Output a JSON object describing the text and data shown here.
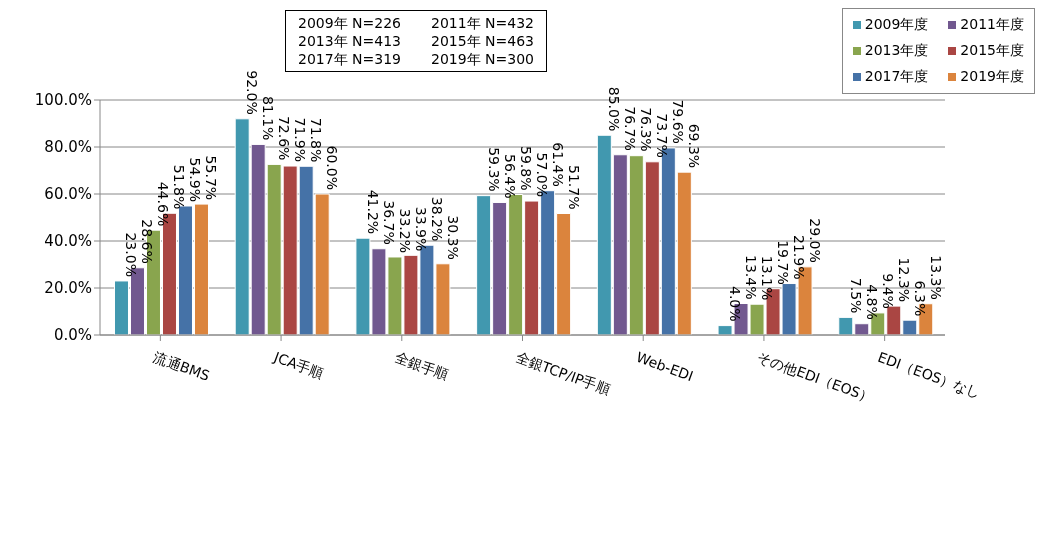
{
  "chart_data": {
    "type": "bar",
    "categories": [
      "流通BMS",
      "JCA手順",
      "全銀手順",
      "全銀TCP/IP手順",
      "Web-EDI",
      "その他EDI（EOS）",
      "EDI（EOS）なし"
    ],
    "series": [
      {
        "name": "2009年度",
        "color": "#4198af",
        "values": [
          23.0,
          92.0,
          41.2,
          59.3,
          85.0,
          4.0,
          7.5
        ],
        "value_labels": [
          "23.0%",
          "92.0%",
          "41.2%",
          "59.3%",
          "85.0%",
          "4.0%",
          "7.5%"
        ]
      },
      {
        "name": "2011年度",
        "color": "#71588f",
        "values": [
          28.6,
          81.1,
          36.7,
          56.4,
          76.7,
          13.4,
          4.8
        ],
        "value_labels": [
          "28.6%",
          "81.1%",
          "36.7%",
          "56.4%",
          "76.7%",
          "13.4%",
          "4.8%"
        ]
      },
      {
        "name": "2013年度",
        "color": "#89a54e",
        "values": [
          44.6,
          72.6,
          33.2,
          59.8,
          76.3,
          13.1,
          9.4
        ],
        "value_labels": [
          "44.6%",
          "72.6%",
          "33.2%",
          "59.8%",
          "76.3%",
          "13.1%",
          "9.4%"
        ]
      },
      {
        "name": "2015年度",
        "color": "#aa4643",
        "values": [
          51.8,
          71.9,
          33.9,
          57.0,
          73.7,
          19.7,
          12.3
        ],
        "value_labels": [
          "51.8%",
          "71.9%",
          "33.9%",
          "57.0%",
          "73.7%",
          "19.7%",
          "12.3%"
        ]
      },
      {
        "name": "2017年度",
        "color": "#4572a7",
        "values": [
          54.9,
          71.8,
          38.2,
          61.4,
          79.6,
          21.9,
          6.3
        ],
        "value_labels": [
          "54.9%",
          "71.8%",
          "38.2%",
          "61.4%",
          "79.6%",
          "21.9%",
          "6.3%"
        ]
      },
      {
        "name": "2019年度",
        "color": "#db843d",
        "values": [
          55.7,
          60.0,
          30.3,
          51.7,
          69.3,
          29.0,
          13.3
        ],
        "value_labels": [
          "55.7%",
          "60.0%",
          "30.3%",
          "51.7%",
          "69.3%",
          "29.0%",
          "13.3%"
        ]
      }
    ],
    "ylim": [
      0,
      100
    ],
    "yticks": [
      {
        "value": 0,
        "label": "0.0%"
      },
      {
        "value": 20,
        "label": "20.0%"
      },
      {
        "value": 40,
        "label": "40.0%"
      },
      {
        "value": 60,
        "label": "60.0%"
      },
      {
        "value": 80,
        "label": "80.0%"
      },
      {
        "value": 100,
        "label": "100.0%"
      }
    ],
    "grid": "y",
    "legend": "top right",
    "annotations": [
      "2009年 N=226",
      "2011年 N=432",
      "2013年 N=413",
      "2015年 N=463",
      "2017年 N=319",
      "2019年 N=300"
    ]
  }
}
